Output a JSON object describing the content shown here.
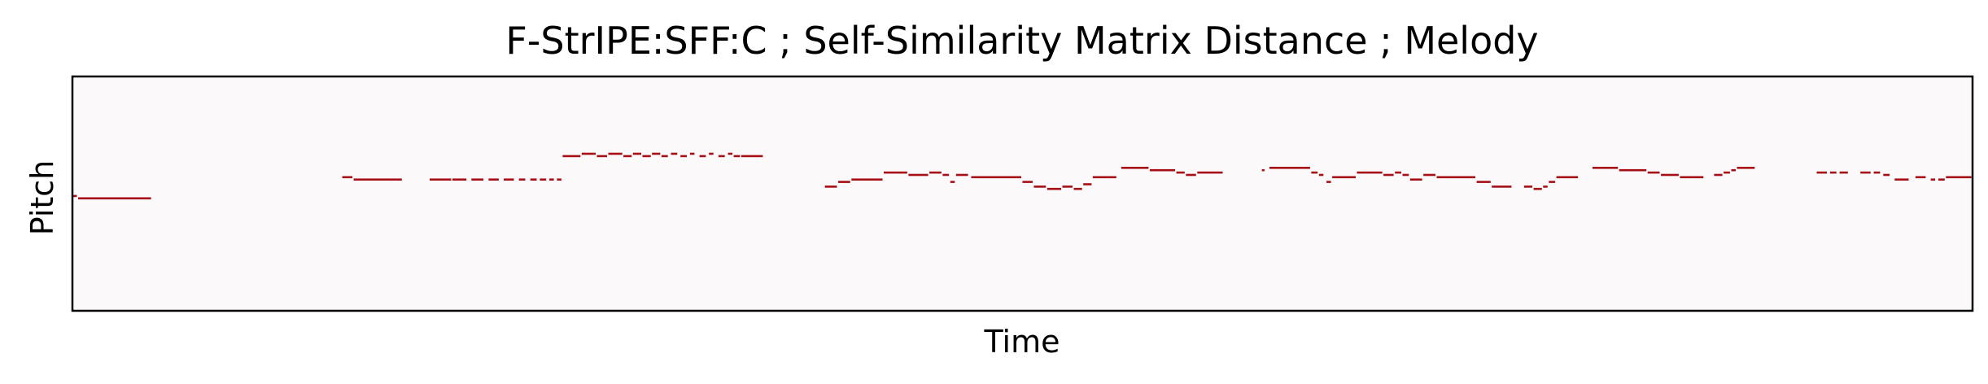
{
  "chart_data": {
    "type": "pianoroll",
    "title": "F-StrIPE:SFF:C ; Self-Similarity Matrix Distance ; Melody",
    "xlabel": "Time",
    "ylabel": "Pitch",
    "xlim": [
      0,
      1000
    ],
    "ylim": [
      0,
      100
    ],
    "ticks_shown": false,
    "grid": false,
    "colors": {
      "background": "#fcf9fb",
      "note": "#a50f15",
      "frame": "#000000"
    },
    "notes": [
      [
        0,
        3,
        49
      ],
      [
        3,
        42,
        48
      ],
      [
        142,
        148,
        57
      ],
      [
        148,
        174,
        56
      ],
      [
        188,
        200,
        56
      ],
      [
        200,
        208,
        56
      ],
      [
        210,
        217,
        56
      ],
      [
        219,
        225,
        56
      ],
      [
        227,
        233,
        56
      ],
      [
        235,
        239,
        56
      ],
      [
        241,
        245,
        56
      ],
      [
        246,
        250,
        56
      ],
      [
        251,
        254,
        56
      ],
      [
        255,
        258,
        56
      ],
      [
        258,
        268,
        66
      ],
      [
        268,
        276,
        67
      ],
      [
        276,
        282,
        66
      ],
      [
        282,
        290,
        67
      ],
      [
        290,
        295,
        66
      ],
      [
        295,
        300,
        67
      ],
      [
        300,
        305,
        66
      ],
      [
        305,
        310,
        67
      ],
      [
        310,
        314,
        66
      ],
      [
        315,
        319,
        67
      ],
      [
        320,
        324,
        66
      ],
      [
        325,
        328,
        67
      ],
      [
        330,
        334,
        66
      ],
      [
        335,
        338,
        67
      ],
      [
        340,
        344,
        66
      ],
      [
        345,
        348,
        67
      ],
      [
        348,
        352,
        66
      ],
      [
        352,
        364,
        66
      ],
      [
        396,
        403,
        53
      ],
      [
        403,
        410,
        55
      ],
      [
        410,
        427,
        56
      ],
      [
        427,
        440,
        59
      ],
      [
        440,
        451,
        58
      ],
      [
        451,
        458,
        59
      ],
      [
        458,
        462,
        58
      ],
      [
        462,
        465,
        55
      ],
      [
        465,
        472,
        58
      ],
      [
        473,
        500,
        57
      ],
      [
        500,
        506,
        55
      ],
      [
        506,
        513,
        53
      ],
      [
        513,
        521,
        52
      ],
      [
        521,
        527,
        53
      ],
      [
        527,
        532,
        52
      ],
      [
        532,
        537,
        54
      ],
      [
        537,
        550,
        57
      ],
      [
        552,
        567,
        61
      ],
      [
        567,
        581,
        60
      ],
      [
        581,
        586,
        59
      ],
      [
        586,
        592,
        58
      ],
      [
        592,
        606,
        59
      ],
      [
        626,
        628,
        60
      ],
      [
        630,
        652,
        61
      ],
      [
        652,
        656,
        59
      ],
      [
        656,
        659,
        58
      ],
      [
        660,
        663,
        55
      ],
      [
        663,
        676,
        57
      ],
      [
        676,
        690,
        59
      ],
      [
        690,
        696,
        58
      ],
      [
        696,
        700,
        59
      ],
      [
        700,
        704,
        58
      ],
      [
        704,
        711,
        56
      ],
      [
        711,
        718,
        58
      ],
      [
        718,
        739,
        57
      ],
      [
        739,
        747,
        55
      ],
      [
        747,
        758,
        53
      ],
      [
        764,
        769,
        53
      ],
      [
        769,
        774,
        52
      ],
      [
        774,
        777,
        53
      ],
      [
        777,
        781,
        55
      ],
      [
        781,
        793,
        57
      ],
      [
        800,
        814,
        61
      ],
      [
        814,
        829,
        60
      ],
      [
        829,
        836,
        59
      ],
      [
        836,
        846,
        58
      ],
      [
        846,
        859,
        57
      ],
      [
        864,
        869,
        58
      ],
      [
        869,
        873,
        59
      ],
      [
        873,
        876,
        60
      ],
      [
        876,
        886,
        61
      ],
      [
        918,
        924,
        59
      ],
      [
        925,
        929,
        59
      ],
      [
        930,
        935,
        59
      ],
      [
        941,
        947,
        59
      ],
      [
        948,
        952,
        59
      ],
      [
        953,
        957,
        58
      ],
      [
        959,
        967,
        56
      ],
      [
        970,
        976,
        57
      ],
      [
        978,
        981,
        56
      ],
      [
        982,
        986,
        56
      ],
      [
        986,
        1000,
        57
      ]
    ]
  }
}
